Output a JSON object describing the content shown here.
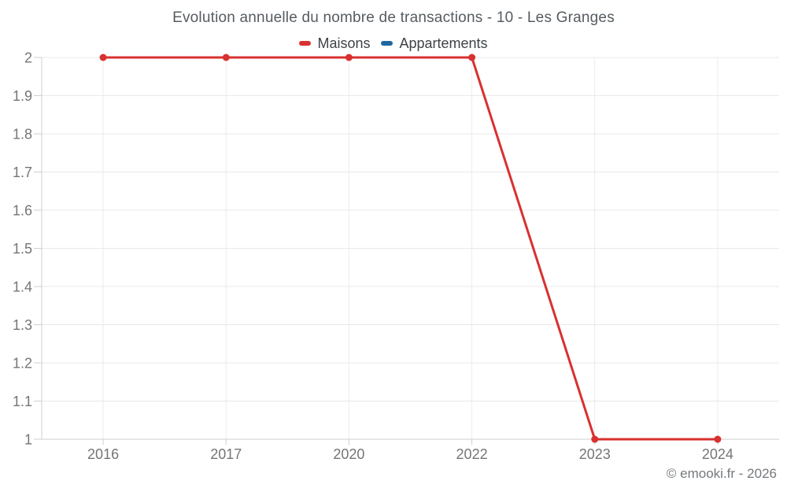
{
  "chart_data": {
    "type": "line",
    "title": "Evolution annuelle du nombre de transactions - 10 - Les Granges",
    "categories": [
      "2016",
      "2017",
      "2020",
      "2022",
      "2023",
      "2024"
    ],
    "series": [
      {
        "name": "Maisons",
        "color": "#d93030",
        "marker": "circle",
        "values": [
          2,
          2,
          2,
          2,
          1,
          1
        ]
      },
      {
        "name": "Appartements",
        "color": "#1b699f",
        "marker": "circle",
        "values": []
      }
    ],
    "xlabel": "",
    "ylabel": "",
    "ylim": [
      1,
      2
    ],
    "ytick_step": 0.1,
    "ytick_labels": [
      "1",
      "1.1",
      "1.2",
      "1.3",
      "1.4",
      "1.5",
      "1.6",
      "1.7",
      "1.8",
      "1.9",
      "2"
    ],
    "grid": "horizontal and vertical light gray gridlines",
    "legend_position": "top-center",
    "colors": {
      "grid_horizontal": "#e8e8e8",
      "grid_vertical": "#ececec",
      "axis_line": "#cfcfcf",
      "tick_label": "#757575"
    }
  },
  "footer": {
    "copyright": "© emooki.fr - 2026"
  }
}
